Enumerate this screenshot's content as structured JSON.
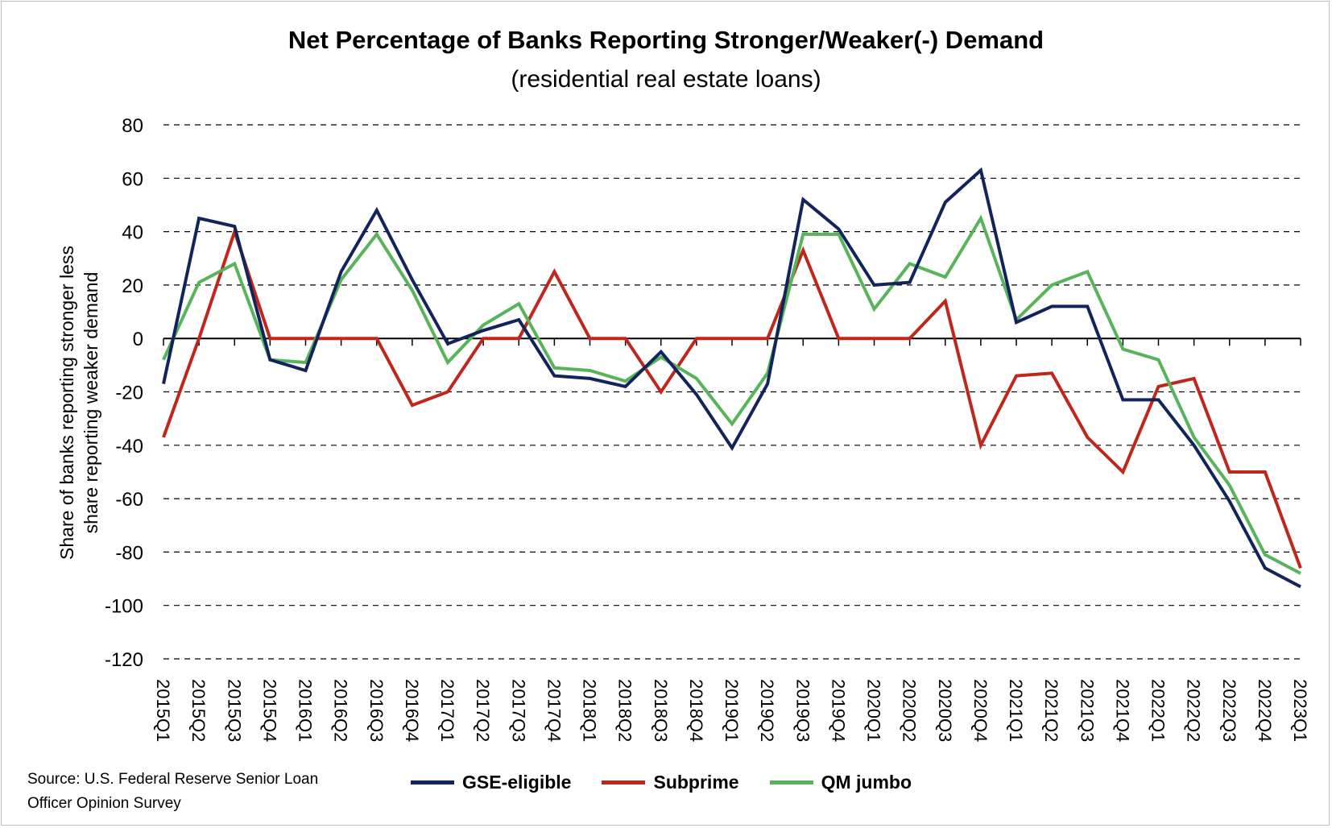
{
  "chart_data": {
    "type": "line",
    "title": "Net Percentage of Banks Reporting Stronger/Weaker(-) Demand",
    "subtitle": "(residential real estate loans)",
    "xlabel": "",
    "ylabel_lines": [
      "Share of banks reporting stronger less",
      "share reporting weaker demand"
    ],
    "ylim": [
      -120,
      80
    ],
    "yticks": [
      80,
      60,
      40,
      20,
      0,
      -20,
      -40,
      -60,
      -80,
      -100,
      -120
    ],
    "grid": "dashed horizontal",
    "legend_position": "bottom",
    "categories": [
      "2015Q1",
      "2015Q2",
      "2015Q3",
      "2015Q4",
      "2016Q1",
      "2016Q2",
      "2016Q3",
      "2016Q4",
      "2017Q1",
      "2017Q2",
      "2017Q3",
      "2017Q4",
      "2018Q1",
      "2018Q2",
      "2018Q3",
      "2018Q4",
      "2019Q1",
      "2019Q2",
      "2019Q3",
      "2019Q4",
      "2020Q1",
      "2020Q2",
      "2020Q3",
      "2020Q4",
      "2021Q1",
      "2021Q2",
      "2021Q3",
      "2021Q4",
      "2022Q1",
      "2022Q2",
      "2022Q3",
      "2022Q4",
      "2023Q1"
    ],
    "series": [
      {
        "name": "GSE-eligible",
        "color": "#13245c",
        "values": [
          -17,
          45,
          42,
          -8,
          -12,
          25,
          48,
          22,
          -2,
          3,
          7,
          -14,
          -15,
          -18,
          -5,
          -21,
          -41,
          -17,
          52,
          41,
          20,
          21,
          51,
          63,
          6,
          12,
          12,
          -23,
          -23,
          -40,
          -61,
          -86,
          -93
        ]
      },
      {
        "name": "Subprime",
        "color": "#c0261c",
        "values": [
          -37,
          0,
          40,
          0,
          0,
          0,
          0,
          -25,
          -20,
          0,
          0,
          25,
          0,
          0,
          -20,
          0,
          0,
          0,
          33,
          0,
          0,
          0,
          14,
          -40,
          -14,
          -13,
          -37,
          -50,
          -18,
          -15,
          -50,
          -50,
          -86
        ]
      },
      {
        "name": "QM jumbo",
        "color": "#58b45a",
        "values": [
          -8,
          21,
          28,
          -8,
          -9,
          22,
          39,
          18,
          -9,
          5,
          13,
          -11,
          -12,
          -16,
          -7,
          -15,
          -32,
          -13,
          39,
          39,
          11,
          28,
          23,
          45,
          7,
          20,
          25,
          -4,
          -8,
          -37,
          -55,
          -81,
          -88
        ]
      }
    ]
  },
  "source_lines": [
    "Source: U.S. Federal Reserve Senior Loan",
    "Officer Opinion Survey"
  ]
}
